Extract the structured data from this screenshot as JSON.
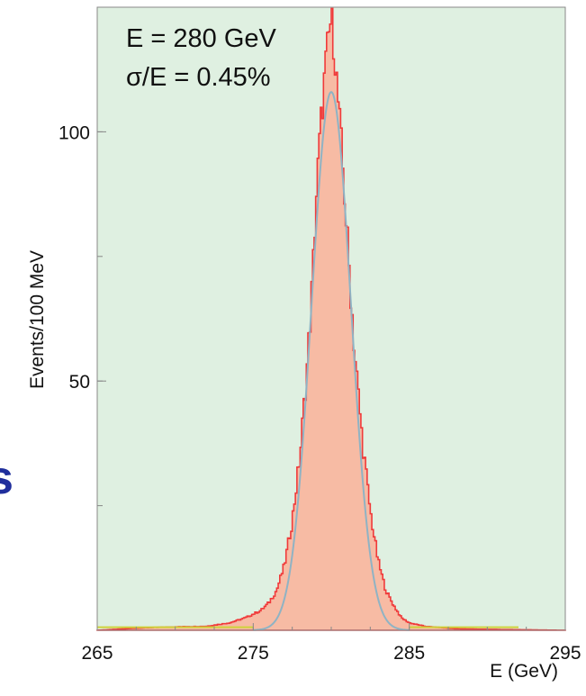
{
  "side_text": "s",
  "chart_data": {
    "type": "histogram",
    "xlabel": "E (GeV)",
    "ylabel": "Events/100 MeV",
    "xlim": [
      265,
      295
    ],
    "ylim": [
      0,
      125
    ],
    "x_ticks": [
      265,
      275,
      285,
      295
    ],
    "y_ticks": [
      50,
      100
    ],
    "grid": false,
    "annotations": [
      "E = 280 GeV",
      "σ/E = 0.45%"
    ],
    "colors": {
      "background": "#dff0e1",
      "histogram_fill": "#f7bba4",
      "histogram_line": "#f03a3a",
      "fit_line": "#8fb3c4",
      "tail": "#cfd23a"
    },
    "fit": {
      "type": "gaussian",
      "mean": 280,
      "sigma": 1.26,
      "peak": 108
    },
    "series": [
      {
        "name": "Events",
        "bin_width": 0.1,
        "points": [
          [
            265.0,
            0
          ],
          [
            268.0,
            0.5
          ],
          [
            270.0,
            0.7
          ],
          [
            272.0,
            0.8
          ],
          [
            273.5,
            1.5
          ],
          [
            274.5,
            2.5
          ],
          [
            275.5,
            4
          ],
          [
            276.0,
            5.5
          ],
          [
            276.5,
            8
          ],
          [
            277.0,
            13
          ],
          [
            277.5,
            22
          ],
          [
            278.0,
            35
          ],
          [
            278.5,
            55
          ],
          [
            278.8,
            70
          ],
          [
            279.0,
            85
          ],
          [
            279.3,
            100
          ],
          [
            279.6,
            112
          ],
          [
            279.8,
            118
          ],
          [
            280.0,
            123
          ],
          [
            280.2,
            117
          ],
          [
            280.4,
            108
          ],
          [
            280.7,
            95
          ],
          [
            281.0,
            80
          ],
          [
            281.5,
            56
          ],
          [
            282.0,
            38
          ],
          [
            282.5,
            24
          ],
          [
            283.0,
            14
          ],
          [
            283.5,
            8
          ],
          [
            284.0,
            5
          ],
          [
            284.5,
            2.5
          ],
          [
            285.0,
            1.5
          ],
          [
            286.0,
            0.8
          ],
          [
            288.0,
            0.3
          ],
          [
            290.0,
            0.2
          ],
          [
            295.0,
            0
          ]
        ]
      }
    ]
  }
}
